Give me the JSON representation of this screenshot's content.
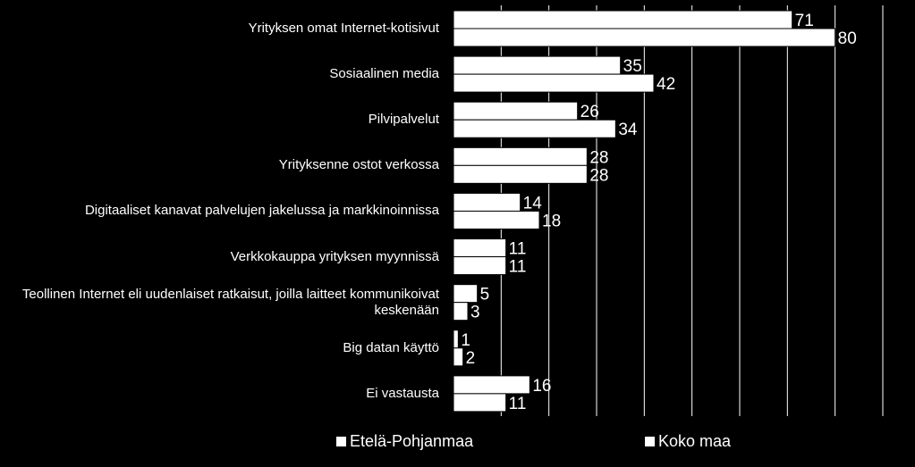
{
  "chart_data": {
    "type": "bar",
    "orientation": "horizontal",
    "categories": [
      "Yrityksen omat Internet-kotisivut",
      "Sosiaalinen media",
      "Pilvipalvelut",
      "Yrityksenne ostot verkossa",
      "Digitaaliset kanavat palvelujen jakelussa ja markkinoinnissa",
      "Verkkokauppa yrityksen myynnissä",
      "Teollinen Internet eli uudenlaiset ratkaisut, joilla laitteet kommunikoivat keskenään",
      "Big datan käyttö",
      "Ei vastausta"
    ],
    "series": [
      {
        "name": "Etelä-Pohjanmaa",
        "values": [
          71,
          35,
          26,
          28,
          14,
          11,
          5,
          1,
          16
        ]
      },
      {
        "name": "Koko maa",
        "values": [
          80,
          42,
          34,
          28,
          18,
          11,
          3,
          2,
          11
        ]
      }
    ],
    "xlim": [
      0,
      90
    ],
    "grid": true,
    "legend": "bottom",
    "colors": {
      "background": "#000000",
      "bar": "#ffffff",
      "bar_stroke": "#000000",
      "gridline": "#ffffff",
      "text": "#ffffff"
    }
  },
  "legend": {
    "items": [
      "Etelä-Pohjanmaa",
      "Koko maa"
    ]
  }
}
